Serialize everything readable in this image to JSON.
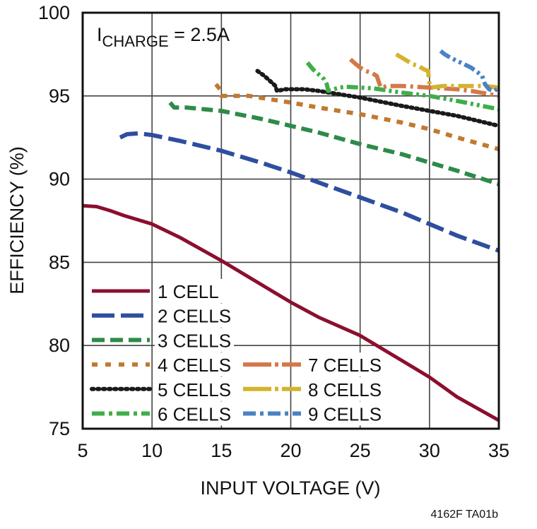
{
  "figure_id": "4162F TA01b",
  "chart_data": {
    "type": "line",
    "title": "",
    "annotation": {
      "main": "I",
      "sub": "CHARGE",
      "rest": " = 2.5A"
    },
    "xlabel": "INPUT VOLTAGE (V)",
    "ylabel": "EFFICIENCY (%)",
    "xlim": [
      5,
      35
    ],
    "ylim": [
      75,
      100
    ],
    "xticks": [
      5,
      10,
      15,
      20,
      25,
      30,
      35
    ],
    "yticks": [
      75,
      80,
      85,
      90,
      95,
      100
    ],
    "grid": true,
    "legend_position": "lower-left, inside plot (two columns)",
    "series": [
      {
        "name": "1 CELL",
        "color": "#8b0f2e",
        "dash": "solid",
        "points": [
          [
            5,
            88.4
          ],
          [
            6,
            88.35
          ],
          [
            7,
            88.1
          ],
          [
            8,
            87.8
          ],
          [
            10,
            87.3
          ],
          [
            12,
            86.5
          ],
          [
            15,
            85.1
          ],
          [
            18,
            83.6
          ],
          [
            20,
            82.6
          ],
          [
            22,
            81.7
          ],
          [
            25,
            80.6
          ],
          [
            28,
            79.1
          ],
          [
            30,
            78.1
          ],
          [
            32,
            76.9
          ],
          [
            35,
            75.5
          ]
        ]
      },
      {
        "name": "2 CELLS",
        "color": "#2e4e9f",
        "dash": "long-dash",
        "points": [
          [
            7.7,
            92.5
          ],
          [
            8.2,
            92.7
          ],
          [
            9,
            92.75
          ],
          [
            10,
            92.65
          ],
          [
            12,
            92.3
          ],
          [
            15,
            91.7
          ],
          [
            18,
            90.95
          ],
          [
            20,
            90.4
          ],
          [
            22,
            89.8
          ],
          [
            25,
            88.9
          ],
          [
            28,
            88.0
          ],
          [
            30,
            87.3
          ],
          [
            32,
            86.6
          ],
          [
            35,
            85.7
          ]
        ]
      },
      {
        "name": "3 CELLS",
        "color": "#2e8a4a",
        "dash": "dash",
        "points": [
          [
            11.3,
            94.6
          ],
          [
            11.6,
            94.3
          ],
          [
            12.5,
            94.3
          ],
          [
            15,
            94.1
          ],
          [
            18,
            93.6
          ],
          [
            20,
            93.2
          ],
          [
            22,
            92.8
          ],
          [
            25,
            92.1
          ],
          [
            28,
            91.5
          ],
          [
            30,
            91.0
          ],
          [
            32,
            90.5
          ],
          [
            35,
            89.7
          ]
        ]
      },
      {
        "name": "4 CELLS",
        "color": "#c07a30",
        "dash": "short-dash",
        "points": [
          [
            14.6,
            95.7
          ],
          [
            14.9,
            95.4
          ],
          [
            15,
            95.0
          ],
          [
            17,
            95.0
          ],
          [
            20,
            94.6
          ],
          [
            22,
            94.3
          ],
          [
            25,
            93.9
          ],
          [
            28,
            93.4
          ],
          [
            30,
            93.0
          ],
          [
            32,
            92.5
          ],
          [
            35,
            91.8
          ]
        ]
      },
      {
        "name": "5 CELLS",
        "color": "#1a1a1a",
        "dash": "dotted",
        "points": [
          [
            17.6,
            96.5
          ],
          [
            18.1,
            96.2
          ],
          [
            18.5,
            95.9
          ],
          [
            18.9,
            95.6
          ],
          [
            19.0,
            95.3
          ],
          [
            19.6,
            95.4
          ],
          [
            20,
            95.4
          ],
          [
            21,
            95.4
          ],
          [
            22,
            95.3
          ],
          [
            25,
            94.9
          ],
          [
            28,
            94.4
          ],
          [
            30,
            94.1
          ],
          [
            32,
            93.8
          ],
          [
            35,
            93.2
          ]
        ]
      },
      {
        "name": "6 CELLS",
        "color": "#3fae49",
        "dash": "dash-dot-dot",
        "points": [
          [
            21.2,
            97.0
          ],
          [
            21.6,
            96.6
          ],
          [
            22.0,
            96.3
          ],
          [
            22.4,
            96.0
          ],
          [
            22.6,
            95.7
          ],
          [
            22.7,
            95.3
          ],
          [
            23.5,
            95.5
          ],
          [
            24,
            95.55
          ],
          [
            25,
            95.5
          ],
          [
            26,
            95.45
          ],
          [
            28,
            95.2
          ],
          [
            30,
            95.0
          ],
          [
            32,
            94.7
          ],
          [
            35,
            94.2
          ]
        ]
      },
      {
        "name": "7 CELLS",
        "color": "#d4784a",
        "dash": "dash-dot",
        "points": [
          [
            24.3,
            97.2
          ],
          [
            24.7,
            96.9
          ],
          [
            25.0,
            96.7
          ],
          [
            25.4,
            96.5
          ],
          [
            25.8,
            96.4
          ],
          [
            26.2,
            96.2
          ],
          [
            26.4,
            95.7
          ],
          [
            26.5,
            95.5
          ],
          [
            27,
            95.6
          ],
          [
            28,
            95.6
          ],
          [
            30,
            95.5
          ],
          [
            32,
            95.4
          ],
          [
            33,
            95.3
          ],
          [
            35,
            95.0
          ]
        ]
      },
      {
        "name": "8 CELLS",
        "color": "#d4b32e",
        "dash": "dash-dot",
        "points": [
          [
            27.6,
            97.5
          ],
          [
            28.0,
            97.3
          ],
          [
            28.4,
            97.1
          ],
          [
            28.8,
            96.9
          ],
          [
            29.2,
            96.8
          ],
          [
            29.6,
            96.6
          ],
          [
            29.9,
            96.5
          ],
          [
            30.0,
            95.7
          ],
          [
            30.1,
            95.5
          ],
          [
            31,
            95.6
          ],
          [
            32,
            95.6
          ],
          [
            33,
            95.6
          ],
          [
            34,
            95.6
          ],
          [
            35,
            95.5
          ]
        ]
      },
      {
        "name": "9 CELLS",
        "color": "#4a82c4",
        "dash": "dash-dot-dot",
        "points": [
          [
            30.8,
            97.7
          ],
          [
            31.1,
            97.5
          ],
          [
            31.5,
            97.3
          ],
          [
            32,
            97.1
          ],
          [
            32.5,
            96.9
          ],
          [
            33,
            96.7
          ],
          [
            33.5,
            96.4
          ],
          [
            33.8,
            96.2
          ],
          [
            34.0,
            95.7
          ],
          [
            34.3,
            95.4
          ],
          [
            34.7,
            95.3
          ],
          [
            35,
            95.5
          ]
        ]
      }
    ]
  }
}
